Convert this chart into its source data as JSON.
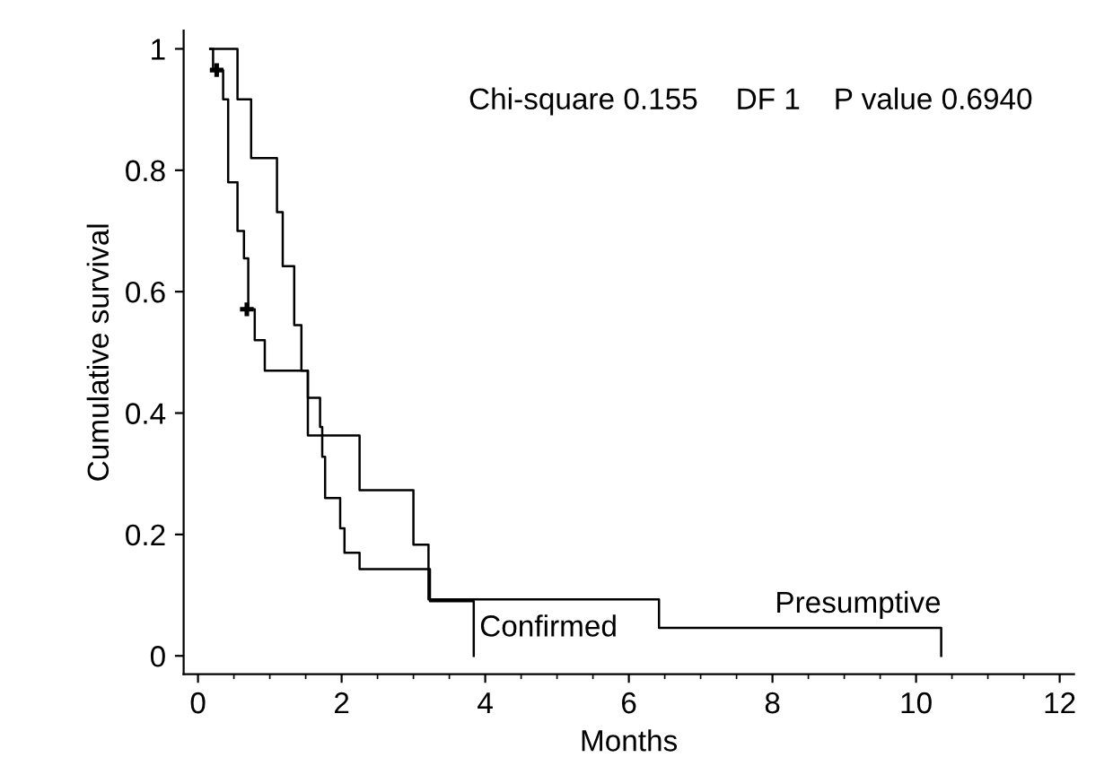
{
  "chart_data": {
    "type": "step",
    "xlabel": "Months",
    "ylabel": "Cumulative survival",
    "annotations": [
      "Chi-square 0.155",
      "DF 1",
      "P value 0.6940"
    ],
    "series": [
      {
        "name": "Confirmed",
        "color": "#000000",
        "x": [
          0.17,
          0.21,
          0.35,
          0.42,
          0.55,
          0.64,
          0.7,
          0.79,
          0.93,
          1.53,
          1.7,
          1.73,
          1.77,
          1.98,
          2.04,
          2.25,
          3.23,
          3.84
        ],
        "values": [
          1.0,
          0.965,
          0.917,
          0.78,
          0.7,
          0.655,
          0.571,
          0.52,
          0.47,
          0.425,
          0.377,
          0.328,
          0.26,
          0.21,
          0.17,
          0.143,
          0.09,
          0
        ]
      },
      {
        "name": "Presumptive",
        "color": "#000000",
        "x": [
          0.17,
          0.55,
          0.74,
          1.1,
          1.18,
          1.34,
          1.44,
          1.53,
          2.25,
          3.0,
          3.21,
          6.42,
          10.35
        ],
        "values": [
          1.0,
          0.917,
          0.82,
          0.731,
          0.642,
          0.545,
          0.47,
          0.363,
          0.273,
          0.183,
          0.093,
          0.046,
          0
        ]
      },
      {
        "type": "scatter",
        "marker": "cross",
        "color": "#000000",
        "x": [
          0.26,
          0.68
        ],
        "values": [
          0.965,
          0.571
        ]
      }
    ],
    "xlim": [
      -0.2,
      12.2
    ],
    "xticks": [
      0,
      2,
      4,
      6,
      8,
      10,
      12
    ],
    "ylim": [
      -0.03,
      1.03
    ],
    "yticks": [
      0,
      0.2,
      0.4,
      0.6,
      0.8,
      1
    ],
    "grid": false,
    "legend": false
  }
}
